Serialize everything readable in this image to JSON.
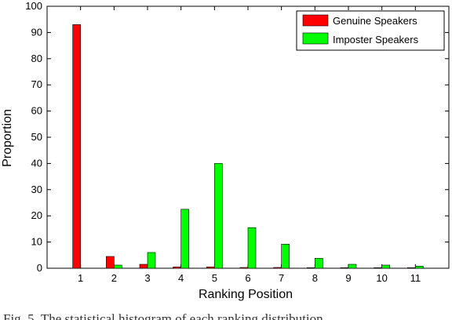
{
  "chart_data": {
    "type": "bar",
    "categories": [
      "1",
      "2",
      "3",
      "4",
      "5",
      "6",
      "7",
      "8",
      "9",
      "10",
      "11"
    ],
    "series": [
      {
        "name": "Genuine Speakers",
        "color": "#ff0000",
        "values": [
          93,
          4.5,
          1.5,
          0.5,
          0.5,
          0.3,
          0.3,
          0.2,
          0.2,
          0.2,
          0.2
        ]
      },
      {
        "name": "Imposter Speakers",
        "color": "#00ff00",
        "values": [
          0,
          1.2,
          6,
          22.5,
          40,
          15.5,
          9.2,
          3.8,
          1.5,
          1.2,
          0.8
        ]
      }
    ],
    "xlabel": "Ranking Position",
    "ylabel": "Proportion",
    "ylim": [
      0,
      100
    ],
    "yticks": [
      0,
      10,
      20,
      30,
      40,
      50,
      60,
      70,
      80,
      90,
      100
    ],
    "legend_position": "top-right",
    "grid": false
  },
  "caption": "Fig. 5. The statistical histogram of each ranking distribution"
}
